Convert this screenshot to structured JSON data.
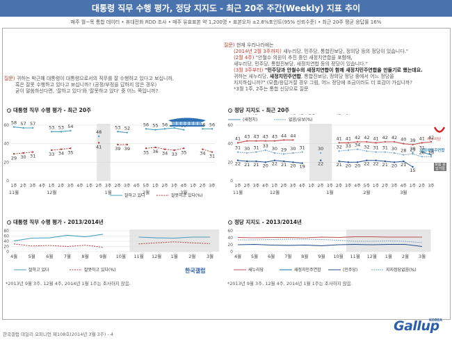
{
  "header": {
    "title": "대통령 직무 수행 평가, 정당 지지도 - 최근 20주 주간(Weekly) 지표 추이",
    "subtitle": "매주 월~목 통합 데이터 • 휴대전화 RDD 조사 • 매주 유효표본 약 1,200명 • 표본오차 ±2.8%포인트(95% 신뢰수준) • 최근 20주 평균 응답률 16%"
  },
  "left_question": {
    "label": "질문)",
    "lines": [
      "귀하는 박근혜 대통령이 대통령으로서의 직무를 잘 수행하고 있다고 보십니까,",
      "혹은 잘못 수행하고 있다고 보십니까? (공정/부정을 답하지 않은 경우)",
      "굳이 말씀하신다면, '잘하고 있다'와 '잘못하고 있다' 중 어느 쪽입니까?"
    ]
  },
  "right_question": {
    "label": "질문)",
    "l1": "현재 우리나라에는",
    "l2a": "(2014년 2월 3주까지)",
    "l2b": " 새누리당, 민주당, 통합진보당, 정의당 등의 정당이 있습니다.\"",
    "l3a": "(2월 4주)",
    "l3b": " \"안철수 의원이 추진 중인 새정치연합을 포함해,",
    "l4": "새누리당, 민주당, 통합진보당, 새정치연합 등의 정당이 있습니다.\"",
    "l5a": "(3월 3주부터)",
    "l5b": " \"민주당과 안철수의 새정치연합이 함께 새정치민주연합을 만들기로 했는데요.",
    "l6a": "귀하는 새누리당, ",
    "l6b": "새정치민주연합",
    "l6c": ", 통합진보당, 정의당 정당 중에서 어느 정당을",
    "l7": "지지하십니까?\" (모름/응답거절 경우 그럼, 어느 정당에 조금이라도 더 호감이 가십니까?",
    "l8": "*3월 1주, 2주는 통합 신당으로 질문"
  },
  "panels": {
    "approval20": "대통령 직무 수행 평가 - 최근 20주",
    "party20": "정당 지지도 - 최근 20주",
    "approvalLong": "대통령 직무 수행 평가 - 2013/2014년",
    "partyLong": "정당 지지도 - 2013/2014년"
  },
  "notes": {
    "left": "*2013년 9월 3주, 12월 4주, 2014년 1월 1주는 조사하지 않음.",
    "right": "*2013년 9월 3주, 12월 4주, 2014년 1월 1주는 조사하지 않음."
  },
  "brand": {
    "hangul": "한국갤럽",
    "logo": "Gallup",
    "korea": "KOREA",
    "footer": "한국갤럽 데일리 오피니언 제108호(2014년 3월 3주) - 4"
  },
  "badges": {
    "saenuri_logo": "새누리당",
    "npad_logo": "새정치민주연합",
    "unknown": "모름 응답거절"
  },
  "colors": {
    "banner": "#4a73ad",
    "approve": "#4a9fbf",
    "disapprove": "#b03a3a",
    "saenuri": "#c0504d",
    "npad": "#3f8fbf",
    "minju": "#1f4e8c",
    "unknown": "#7fa7c9"
  },
  "chart_data": [
    {
      "type": "line",
      "title": "대통령 직무 수행 평가 - 최근 20주",
      "categories": [
        "1주",
        "2주",
        "3주",
        "4주",
        "1주",
        "2주",
        "3주",
        "4주",
        "1주",
        "2주",
        "3주",
        "2주",
        "3주",
        "4주",
        "5주",
        "1주",
        "2주",
        "3주",
        "4주",
        "1주",
        "2주",
        "3주"
      ],
      "month_labels": [
        {
          "label": "11월",
          "at": 0
        },
        {
          "label": "12월",
          "at": 4
        },
        {
          "label": "1월",
          "at": 10
        },
        {
          "label": "2월",
          "at": 14
        },
        {
          "label": "3월",
          "at": 18
        }
      ],
      "gap_after": [
        9,
        10
      ],
      "ylim": [
        0,
        60
      ],
      "yticks": [
        0,
        20,
        40,
        60
      ],
      "series": [
        {
          "name": "잘하고 있다",
          "values": [
            58,
            57,
            57,
            null,
            53,
            53,
            54,
            null,
            null,
            48,
            null,
            53,
            52,
            null,
            56,
            55,
            56,
            57,
            55,
            null,
            56,
            56
          ]
        },
        {
          "name": "잘못하고 있다(%)",
          "values": [
            29,
            30,
            31,
            null,
            33,
            34,
            35,
            null,
            null,
            41,
            null,
            39,
            39,
            null,
            35,
            36,
            34,
            33,
            35,
            null,
            34,
            31
          ]
        }
      ]
    },
    {
      "type": "line",
      "title": "정당 지지도 - 최근 20주",
      "categories": [
        "1주",
        "2주",
        "3주",
        "4주",
        "1주",
        "2주",
        "3주",
        "4주",
        "1주",
        "2주",
        "3주",
        "2주",
        "3주",
        "4주",
        "5주",
        "1주",
        "2주",
        "3주",
        "4주",
        "1주",
        "2주",
        "3주"
      ],
      "month_labels": [
        {
          "label": "11월",
          "at": 0
        },
        {
          "label": "12월",
          "at": 4
        },
        {
          "label": "1월",
          "at": 10
        },
        {
          "label": "2월",
          "at": 14
        },
        {
          "label": "3월",
          "at": 18
        }
      ],
      "ylim": [
        0,
        60
      ],
      "yticks": [
        0,
        20,
        40,
        60
      ],
      "series": [
        {
          "name": "새누리당",
          "values": [
            41,
            43,
            43,
            43,
            43,
            44,
            44,
            null,
            null,
            null,
            null,
            41,
            41,
            42,
            42,
            41,
            42,
            42,
            40,
            39,
            41,
            42
          ]
        },
        {
          "name": "새정치민주연합",
          "values": [
            null,
            null,
            null,
            null,
            null,
            null,
            null,
            null,
            null,
            null,
            null,
            null,
            null,
            null,
            null,
            null,
            null,
            null,
            null,
            null,
            31,
            28
          ]
        },
        {
          "name": "(민주당)",
          "values": [
            22,
            21,
            21,
            20,
            22,
            21,
            20,
            19,
            null,
            22,
            null,
            21,
            20,
            20,
            22,
            22,
            21,
            20,
            21,
            15,
            null,
            null
          ]
        },
        {
          "name": "(새정치)",
          "values": [
            null,
            null,
            null,
            null,
            null,
            null,
            null,
            null,
            null,
            null,
            null,
            null,
            null,
            null,
            null,
            null,
            null,
            null,
            null,
            30,
            null,
            null
          ]
        },
        {
          "name": "없음/유보(%)",
          "values": [
            31,
            30,
            31,
            33,
            30,
            29,
            30,
            31,
            null,
            30,
            null,
            32,
            33,
            34,
            32,
            31,
            31,
            30,
            28,
            29,
            26,
            26
          ]
        }
      ]
    },
    {
      "type": "line",
      "title": "대통령 직무 수행 평가 - 2013/2014년",
      "categories": [
        "4월",
        "5월",
        "6월",
        "7월",
        "8월",
        "9월",
        "10월",
        "11월",
        "12월",
        "1월",
        "2월",
        "3월"
      ],
      "ylim": [
        0,
        80
      ],
      "yticks": [
        0,
        20,
        40,
        60,
        80
      ],
      "series": [
        {
          "name": "잘하고 있다",
          "values": [
            41,
            52,
            53,
            63,
            57,
            67,
            null,
            56,
            53,
            52,
            56,
            56
          ]
        },
        {
          "name": "잘못하고 있다(%)",
          "values": [
            30,
            22,
            24,
            20,
            25,
            17,
            null,
            30,
            34,
            38,
            34,
            31
          ]
        }
      ]
    },
    {
      "type": "line",
      "title": "정당 지지도 - 2013/2014년",
      "categories": [
        "4월",
        "5월",
        "6월",
        "7월",
        "8월",
        "9월",
        "10월",
        "11월",
        "12월",
        "1월",
        "2월",
        "3월"
      ],
      "ylim": [
        0,
        60
      ],
      "yticks": [
        0,
        20,
        40,
        60
      ],
      "series": [
        {
          "name": "새누리당",
          "values": [
            41,
            40,
            41,
            41,
            40,
            42,
            41,
            43,
            43,
            42,
            42,
            42
          ]
        },
        {
          "name": "새정치민주연합",
          "values": [
            null,
            null,
            null,
            null,
            null,
            null,
            null,
            null,
            null,
            null,
            null,
            28
          ]
        },
        {
          "name": "(민주당)",
          "values": [
            20,
            21,
            19,
            18,
            19,
            17,
            20,
            21,
            20,
            21,
            21,
            15
          ]
        },
        {
          "name": "지지정당없음(%)",
          "values": [
            34,
            34,
            35,
            36,
            36,
            35,
            33,
            30,
            30,
            31,
            30,
            26
          ]
        }
      ]
    }
  ]
}
